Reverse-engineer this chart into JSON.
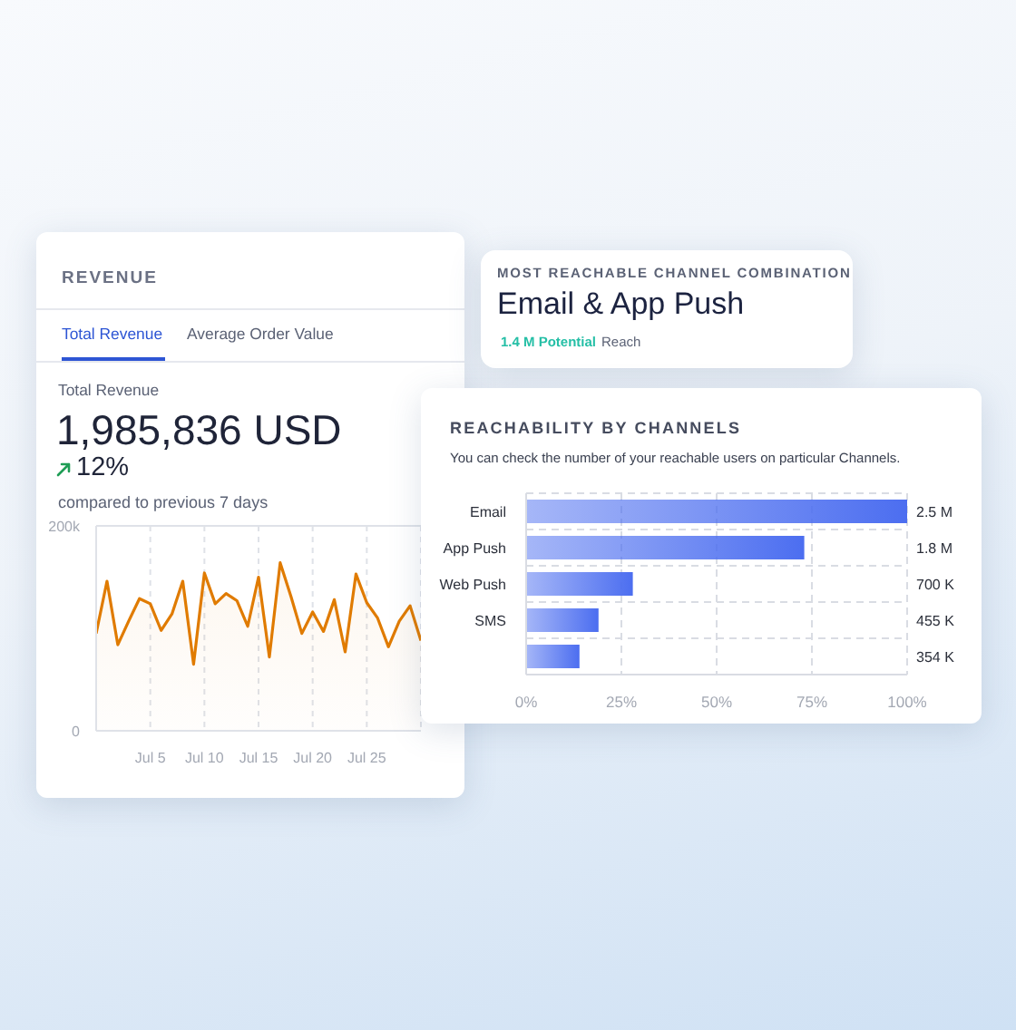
{
  "chart_data": [
    {
      "type": "area",
      "title": "REVENUE",
      "annotations": [
        "Total Revenue",
        "Average Order Value",
        "Total Revenue",
        "1,985,836 USD",
        "12%",
        "compared to previous 7 days"
      ],
      "x": [
        "--06-30",
        "--07-01",
        "--07-02",
        "--07-03",
        "--07-04",
        "--07-05",
        "--07-06",
        "--07-07",
        "--07-08",
        "--07-09",
        "--07-10",
        "--07-11",
        "--07-12",
        "--07-13",
        "--07-14",
        "--07-15",
        "--07-16",
        "--07-17",
        "--07-18",
        "--07-19",
        "--07-20",
        "--07-21",
        "--07-22",
        "--07-23",
        "--07-24",
        "--07-25",
        "--07-26",
        "--07-27",
        "--07-28",
        "--07-29",
        "--07-30"
      ],
      "values": [
        95000,
        146000,
        84000,
        107000,
        129000,
        124000,
        98000,
        114000,
        146000,
        65000,
        154000,
        124000,
        134000,
        127000,
        102000,
        150000,
        72000,
        164000,
        131000,
        95000,
        116000,
        97000,
        128000,
        77000,
        153000,
        125000,
        110000,
        82000,
        107000,
        122000,
        88000
      ],
      "color": "#e07b00",
      "xlim": [
        "--06-30",
        "--07-30"
      ],
      "xticks": [
        {
          "value": "--07-05",
          "label": "Jul 5"
        },
        {
          "value": "--07-10",
          "label": "Jul 10"
        },
        {
          "value": "--07-15",
          "label": "Jul 15"
        },
        {
          "value": "--07-20",
          "label": "Jul 20"
        },
        {
          "value": "--07-25",
          "label": "Jul 25"
        }
      ],
      "ylim": [
        0,
        200000
      ],
      "yticks": [
        0,
        {
          "value": 200000,
          "label": "200k"
        }
      ],
      "grid": true
    },
    {
      "type": "other",
      "title": "MOST REACHABLE CHANNEL COMBINATION",
      "subtitle": "Email & App Push",
      "annotations": [
        "1.4 M Potential",
        "Reach"
      ]
    },
    {
      "type": "bar",
      "orientation": "horizontal",
      "title": "REACHABILITY BY CHANNELS",
      "subtitle": "You can check the number of your reachable users on particular Channels.",
      "categories": [
        "Email",
        "App Push",
        "Web Push",
        "SMS",
        null
      ],
      "values": [
        100,
        73,
        28,
        19,
        14
      ],
      "color": "#4c6ef0",
      "annotations": [
        "2.5 M",
        "1.8 M",
        "700 K",
        "455 K",
        "354 K"
      ],
      "xlim": [
        0,
        100
      ],
      "xticks": [
        {
          "value": 0,
          "label": "0%"
        },
        {
          "value": 25,
          "label": "25%"
        },
        {
          "value": 50,
          "label": "50%"
        },
        {
          "value": 75,
          "label": "75%"
        },
        {
          "value": 100,
          "label": "100%"
        }
      ],
      "grid": true
    }
  ]
}
